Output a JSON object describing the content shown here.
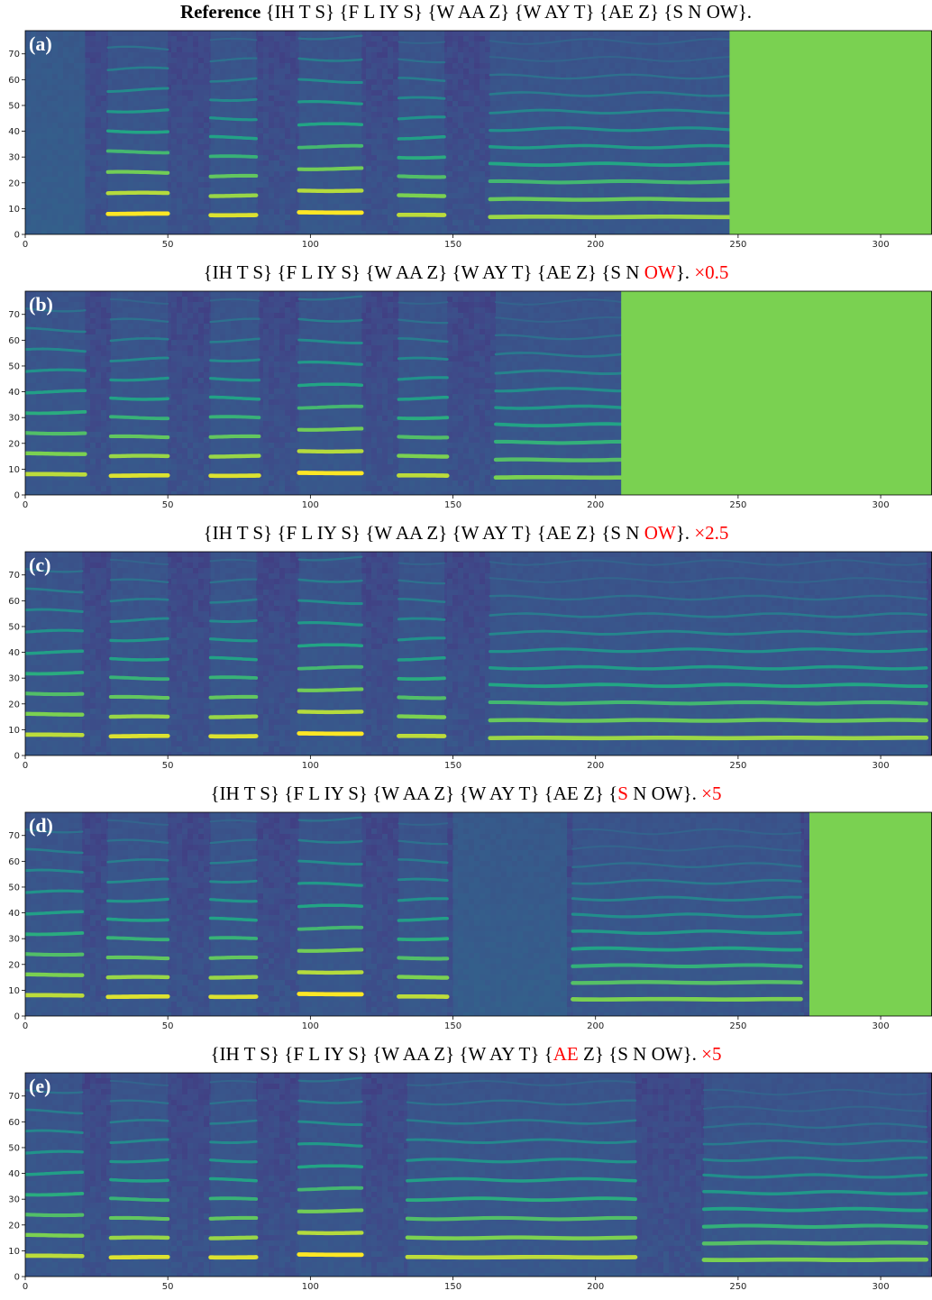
{
  "chart_data": [
    {
      "type": "heatmap",
      "panel_label": "(a)",
      "title_parts": [
        {
          "text": "Reference",
          "bold": true,
          "highlight": false
        },
        {
          "text": " {IH T S} {F L IY S} {W AA Z} {W AY T} {AE Z} {S N OW}.",
          "bold": false,
          "highlight": false
        }
      ],
      "xlim": [
        0,
        318
      ],
      "ylim": [
        0,
        79
      ],
      "xticks": [
        0,
        50,
        100,
        150,
        200,
        250,
        300
      ],
      "yticks": [
        0,
        10,
        20,
        30,
        40,
        50,
        60,
        70
      ],
      "content_end_frame": 247,
      "padding_color": "#7ad151",
      "segments": [
        {
          "start": 0,
          "end": 21,
          "kind": "unvoiced"
        },
        {
          "start": 29,
          "end": 50,
          "kind": "voiced",
          "f0_bins": 8.0,
          "intensity": 1.0
        },
        {
          "start": 65,
          "end": 81,
          "kind": "voiced",
          "f0_bins": 7.5,
          "intensity": 0.95
        },
        {
          "start": 96,
          "end": 118,
          "kind": "voiced",
          "f0_bins": 8.5,
          "intensity": 1.0
        },
        {
          "start": 131,
          "end": 147,
          "kind": "voiced",
          "f0_bins": 7.5,
          "intensity": 0.9
        },
        {
          "start": 163,
          "end": 247,
          "kind": "voiced",
          "f0_bins": 6.8,
          "intensity": 0.85
        }
      ]
    },
    {
      "type": "heatmap",
      "panel_label": "(b)",
      "title_parts": [
        {
          "text": "{IH T S} {F L IY S} {W AA Z} {W AY T} {AE Z} {S N ",
          "bold": false,
          "highlight": false
        },
        {
          "text": "OW",
          "bold": false,
          "highlight": true
        },
        {
          "text": "}. ",
          "bold": false,
          "highlight": false
        },
        {
          "text": "×0.5",
          "bold": false,
          "highlight": true
        }
      ],
      "xlim": [
        0,
        318
      ],
      "ylim": [
        0,
        79
      ],
      "xticks": [
        0,
        50,
        100,
        150,
        200,
        250,
        300
      ],
      "yticks": [
        0,
        10,
        20,
        30,
        40,
        50,
        60,
        70
      ],
      "content_end_frame": 209,
      "padding_color": "#7ad151",
      "segments": [
        {
          "start": 0,
          "end": 21,
          "kind": "voiced",
          "f0_bins": 8.0,
          "intensity": 0.9
        },
        {
          "start": 30,
          "end": 50,
          "kind": "voiced",
          "f0_bins": 7.5,
          "intensity": 0.95
        },
        {
          "start": 65,
          "end": 82,
          "kind": "voiced",
          "f0_bins": 7.5,
          "intensity": 0.95
        },
        {
          "start": 96,
          "end": 118,
          "kind": "voiced",
          "f0_bins": 8.5,
          "intensity": 1.0
        },
        {
          "start": 131,
          "end": 148,
          "kind": "voiced",
          "f0_bins": 7.5,
          "intensity": 0.9
        },
        {
          "start": 165,
          "end": 209,
          "kind": "voiced",
          "f0_bins": 6.8,
          "intensity": 0.8
        }
      ]
    },
    {
      "type": "heatmap",
      "panel_label": "(c)",
      "title_parts": [
        {
          "text": "{IH T S} {F L IY S} {W AA Z} {W AY T} {AE Z} {S N ",
          "bold": false,
          "highlight": false
        },
        {
          "text": "OW",
          "bold": false,
          "highlight": true
        },
        {
          "text": "}. ",
          "bold": false,
          "highlight": false
        },
        {
          "text": "×2.5",
          "bold": false,
          "highlight": true
        }
      ],
      "xlim": [
        0,
        318
      ],
      "ylim": [
        0,
        79
      ],
      "xticks": [
        0,
        50,
        100,
        150,
        200,
        250,
        300
      ],
      "yticks": [
        0,
        10,
        20,
        30,
        40,
        50,
        60,
        70
      ],
      "content_end_frame": 318,
      "padding_color": "#7ad151",
      "segments": [
        {
          "start": 0,
          "end": 20,
          "kind": "voiced",
          "f0_bins": 8.0,
          "intensity": 0.9
        },
        {
          "start": 30,
          "end": 50,
          "kind": "voiced",
          "f0_bins": 7.5,
          "intensity": 0.95
        },
        {
          "start": 65,
          "end": 81,
          "kind": "voiced",
          "f0_bins": 7.5,
          "intensity": 0.95
        },
        {
          "start": 96,
          "end": 118,
          "kind": "voiced",
          "f0_bins": 8.5,
          "intensity": 1.0
        },
        {
          "start": 131,
          "end": 147,
          "kind": "voiced",
          "f0_bins": 7.5,
          "intensity": 0.9
        },
        {
          "start": 163,
          "end": 316,
          "kind": "voiced",
          "f0_bins": 6.8,
          "intensity": 0.85
        }
      ]
    },
    {
      "type": "heatmap",
      "panel_label": "(d)",
      "title_parts": [
        {
          "text": "{IH T S} {F L IY S} {W AA Z} {W AY T} {AE Z} {",
          "bold": false,
          "highlight": false
        },
        {
          "text": "S",
          "bold": false,
          "highlight": true
        },
        {
          "text": " N OW}. ",
          "bold": false,
          "highlight": false
        },
        {
          "text": "×5",
          "bold": false,
          "highlight": true
        }
      ],
      "xlim": [
        0,
        318
      ],
      "ylim": [
        0,
        79
      ],
      "xticks": [
        0,
        50,
        100,
        150,
        200,
        250,
        300
      ],
      "yticks": [
        0,
        10,
        20,
        30,
        40,
        50,
        60,
        70
      ],
      "content_end_frame": 275,
      "padding_color": "#7ad151",
      "segments": [
        {
          "start": 0,
          "end": 20,
          "kind": "voiced",
          "f0_bins": 8.0,
          "intensity": 0.9
        },
        {
          "start": 29,
          "end": 50,
          "kind": "voiced",
          "f0_bins": 7.5,
          "intensity": 0.95
        },
        {
          "start": 65,
          "end": 81,
          "kind": "voiced",
          "f0_bins": 7.5,
          "intensity": 0.95
        },
        {
          "start": 96,
          "end": 118,
          "kind": "voiced",
          "f0_bins": 8.5,
          "intensity": 1.0
        },
        {
          "start": 131,
          "end": 148,
          "kind": "voiced",
          "f0_bins": 7.5,
          "intensity": 0.9
        },
        {
          "start": 150,
          "end": 190,
          "kind": "unvoiced"
        },
        {
          "start": 192,
          "end": 272,
          "kind": "voiced",
          "f0_bins": 6.5,
          "intensity": 0.8
        }
      ]
    },
    {
      "type": "heatmap",
      "panel_label": "(e)",
      "title_parts": [
        {
          "text": "{IH T S} {F L IY S} {W AA Z} {W AY T} {",
          "bold": false,
          "highlight": false
        },
        {
          "text": "AE",
          "bold": false,
          "highlight": true
        },
        {
          "text": " Z} {S N OW}. ",
          "bold": false,
          "highlight": false
        },
        {
          "text": "×5",
          "bold": false,
          "highlight": true
        }
      ],
      "xlim": [
        0,
        318
      ],
      "ylim": [
        0,
        79
      ],
      "xticks": [
        0,
        50,
        100,
        150,
        200,
        250,
        300
      ],
      "yticks": [
        0,
        10,
        20,
        30,
        40,
        50,
        60,
        70
      ],
      "content_end_frame": 318,
      "padding_color": "#7ad151",
      "segments": [
        {
          "start": 0,
          "end": 20,
          "kind": "voiced",
          "f0_bins": 8.0,
          "intensity": 0.9
        },
        {
          "start": 30,
          "end": 50,
          "kind": "voiced",
          "f0_bins": 7.5,
          "intensity": 0.95
        },
        {
          "start": 65,
          "end": 81,
          "kind": "voiced",
          "f0_bins": 7.5,
          "intensity": 0.95
        },
        {
          "start": 96,
          "end": 118,
          "kind": "voiced",
          "f0_bins": 8.5,
          "intensity": 1.0
        },
        {
          "start": 134,
          "end": 214,
          "kind": "voiced",
          "f0_bins": 7.5,
          "intensity": 0.9
        },
        {
          "start": 238,
          "end": 316,
          "kind": "voiced",
          "f0_bins": 6.5,
          "intensity": 0.8
        }
      ]
    }
  ]
}
